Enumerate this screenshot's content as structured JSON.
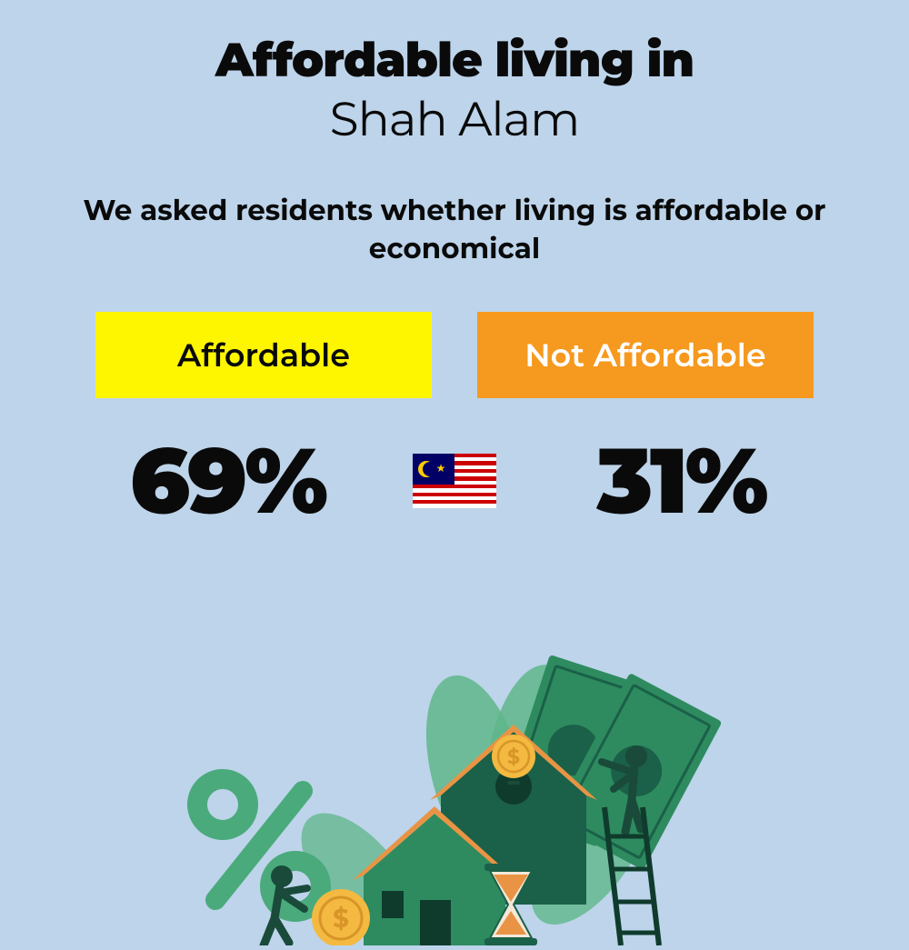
{
  "colors": {
    "background": "#bdd4ea",
    "text": "#0a0a0a",
    "affordable_box": "#fef500",
    "not_affordable_box": "#f6991f",
    "not_affordable_text": "#ffffff",
    "flag_red": "#cc0001",
    "flag_white": "#ffffff",
    "flag_blue": "#010066",
    "flag_yellow": "#ffcc00",
    "illustration_dark_green": "#1b6048",
    "illustration_mid_green": "#2d8b5f",
    "illustration_light_green": "#4aaa7c",
    "illustration_leaf": "#5fb68a",
    "illustration_orange": "#e89444",
    "illustration_dark": "#0f3b2d",
    "illustration_coin": "#f4b941",
    "illustration_coin_dark": "#d89528",
    "illustration_person": "#1a4a3a"
  },
  "title": {
    "line1": "Affordable living in",
    "line2": "Shah Alam"
  },
  "subtitle": "We asked residents whether living is affordable or economical",
  "labels": {
    "affordable": "Affordable",
    "not_affordable": "Not Affordable"
  },
  "stats": {
    "affordable_pct": "69%",
    "not_affordable_pct": "31%"
  }
}
